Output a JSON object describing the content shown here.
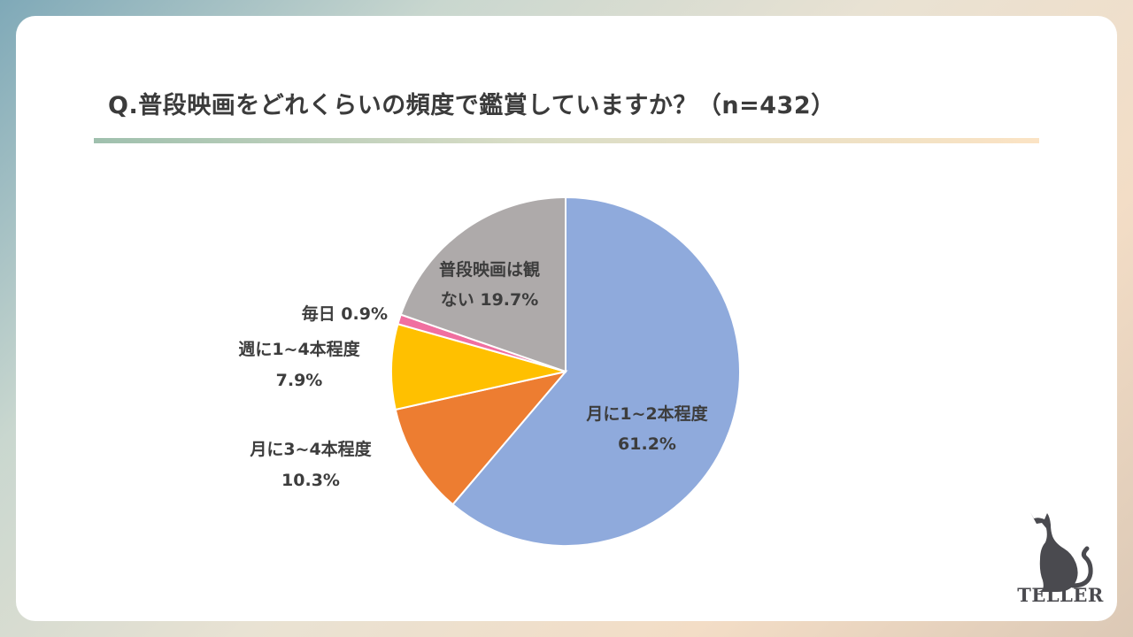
{
  "title": "Q.普段映画をどれくらいの頻度で鑑賞していますか？（n=432）",
  "brand": {
    "name": "TELLER",
    "icon": "cat-silhouette-icon"
  },
  "chart_data": {
    "type": "pie",
    "start_angle_deg": 0,
    "direction": "clockwise",
    "slices": [
      {
        "label": "月に1~2本程度",
        "value": 61.2,
        "display": "61.2%",
        "color": "#8faadc"
      },
      {
        "label": "月に3~4本程度",
        "value": 10.3,
        "display": "10.3%",
        "color": "#ed7d31"
      },
      {
        "label": "週に1~4本程度",
        "value": 7.9,
        "display": "7.9%",
        "color": "#ffc000"
      },
      {
        "label": "毎日",
        "value": 0.9,
        "display": "0.9%",
        "color": "#f06fa0"
      },
      {
        "label": "普段映画は観ない",
        "value": 19.7,
        "display": "19.7%",
        "color": "#aeaaaa"
      }
    ]
  }
}
